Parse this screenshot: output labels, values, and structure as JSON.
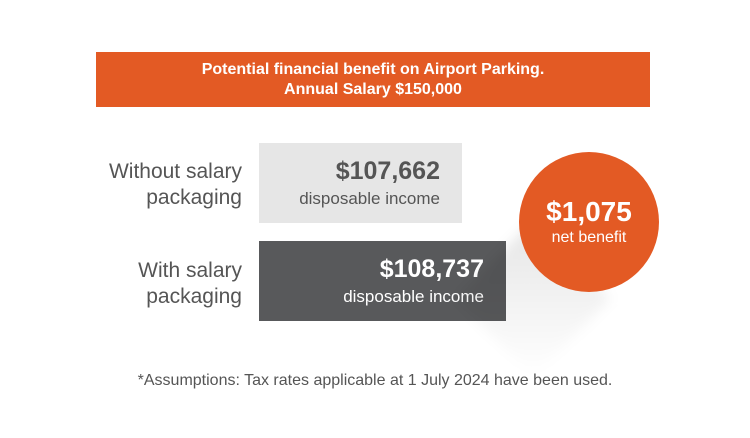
{
  "banner": {
    "line1": "Potential financial benefit on Airport Parking.",
    "line2": "Annual Salary $150,000"
  },
  "without": {
    "label_line1": "Without salary",
    "label_line2": "packaging",
    "amount": "$107,662",
    "sub": "disposable income"
  },
  "with": {
    "label_line1": "With salary",
    "label_line2": "packaging",
    "amount": "$108,737",
    "sub": "disposable income"
  },
  "benefit": {
    "amount": "$1,075",
    "label": "net benefit"
  },
  "footnote": "*Assumptions: Tax rates applicable at 1 July 2024 have been used.",
  "colors": {
    "accent": "#e35a24",
    "dark_box": "#58595b",
    "light_box": "#e6e6e6",
    "text": "#555555"
  }
}
